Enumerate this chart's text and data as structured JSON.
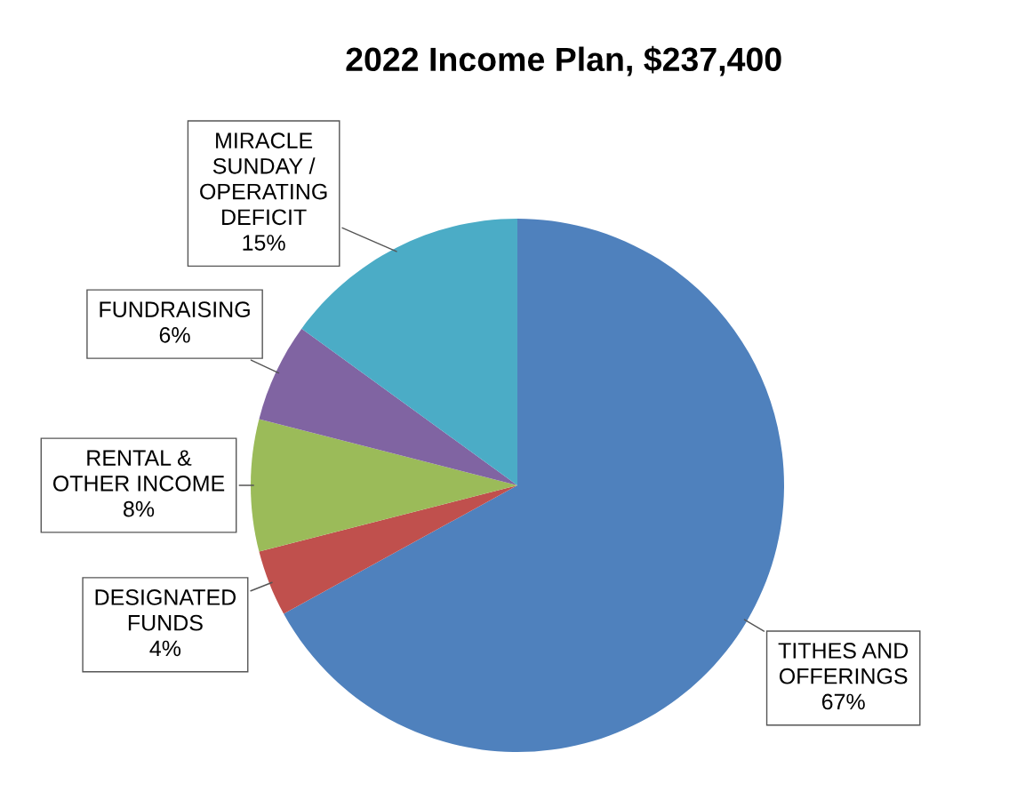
{
  "chart_data": {
    "type": "pie",
    "title": "2022 Income Plan, $237,400",
    "categories": [
      "TITHES AND\nOFFERINGS",
      "DESIGNATED\nFUNDS",
      "RENTAL &\nOTHER INCOME",
      "FUNDRAISING",
      "MIRACLE\nSUNDAY /\nOPERATING\nDEFICIT"
    ],
    "values": [
      67,
      4,
      8,
      6,
      15
    ],
    "colors": [
      "#4f81bd",
      "#c0504d",
      "#9bbb59",
      "#8064a2",
      "#4bacc6"
    ],
    "value_labels": [
      "67%",
      "4%",
      "8%",
      "6%",
      "15%"
    ],
    "legend": false
  }
}
